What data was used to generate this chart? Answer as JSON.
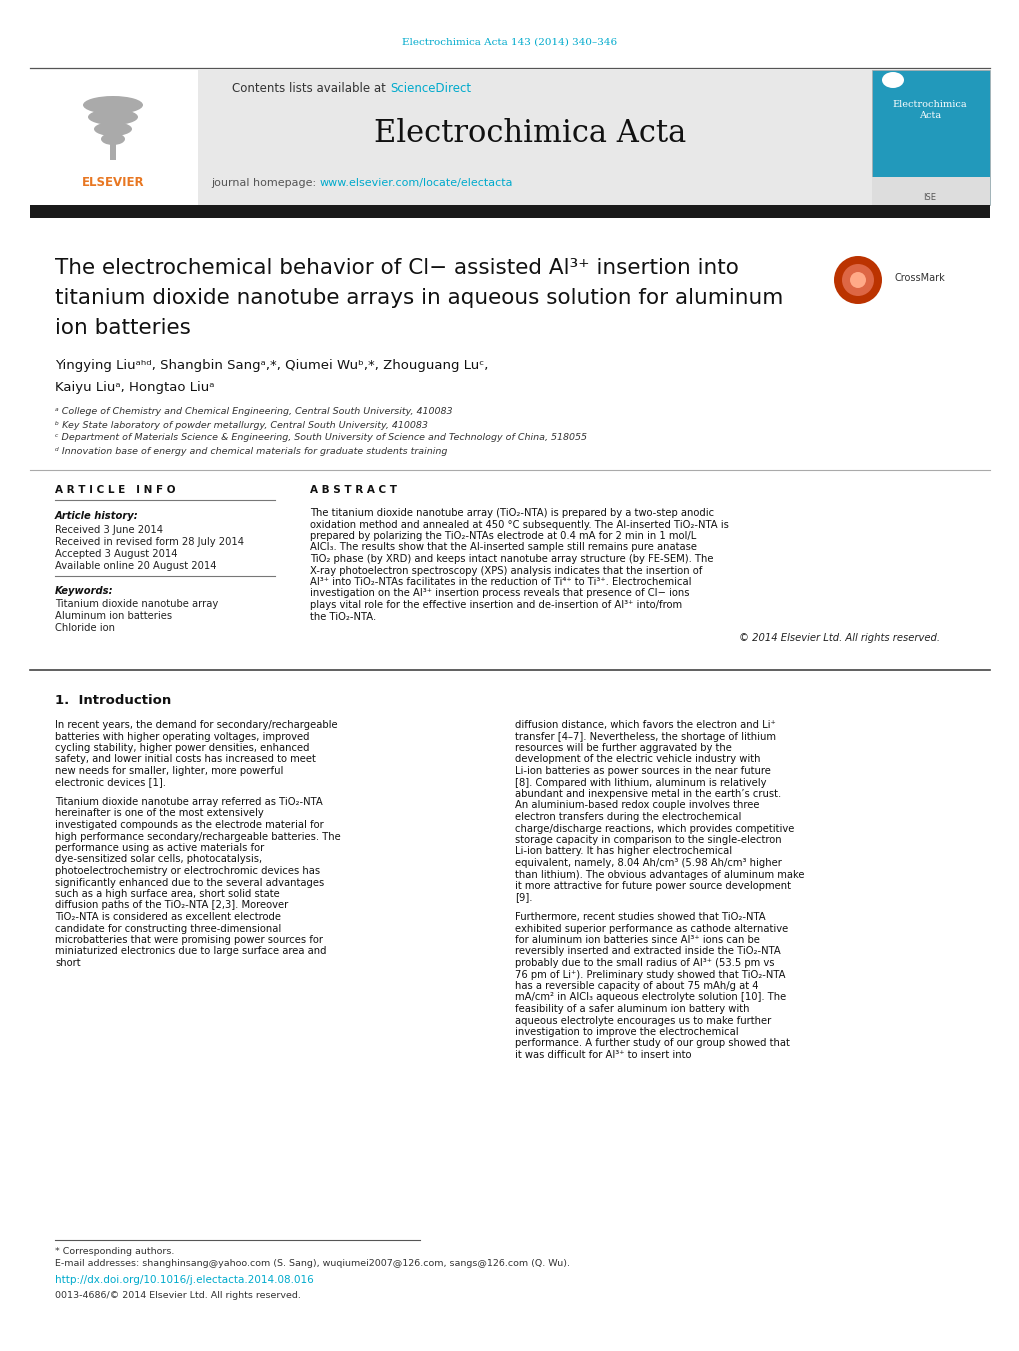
{
  "fig_width": 10.2,
  "fig_height": 13.51,
  "bg_color": "#ffffff",
  "header_citation": "Electrochimica Acta 143 (2014) 340–346",
  "link_color": "#00aacc",
  "journal_name": "Electrochimica Acta",
  "contents_text": "Contents lists available at ",
  "science_direct": "ScienceDirect",
  "journal_homepage_text": "journal homepage: ",
  "journal_url": "www.elsevier.com/locate/electacta",
  "header_bg": "#e8e8e8",
  "dark_bar_color": "#1a1a1a",
  "title_line1": "The electrochemical behavior of Cl− assisted Al³⁺ insertion into",
  "title_line2": "titanium dioxide nanotube arrays in aqueous solution for aluminum",
  "title_line3": "ion batteries",
  "authors_line1": "Yingying Liuᵃʰᵈ, Shangbin Sangᵃ,*, Qiumei Wuᵇ,*, Zhouguang Luᶜ,",
  "authors_line2": "Kaiyu Liuᵃ, Hongtao Liuᵃ",
  "affil_a": "ᵃ College of Chemistry and Chemical Engineering, Central South University, 410083",
  "affil_b": "ᵇ Key State laboratory of powder metallurgy, Central South University, 410083",
  "affil_c": "ᶜ Department of Materials Science & Engineering, South University of Science and Technology of China, 518055",
  "affil_d": "ᵈ Innovation base of energy and chemical materials for graduate students training",
  "article_info_header": "A R T I C L E   I N F O",
  "abstract_header": "A B S T R A C T",
  "article_history_label": "Article history:",
  "received1": "Received 3 June 2014",
  "received2": "Received in revised form 28 July 2014",
  "accepted": "Accepted 3 August 2014",
  "available": "Available online 20 August 2014",
  "keywords_label": "Keywords:",
  "kw1": "Titanium dioxide nanotube array",
  "kw2": "Aluminum ion batteries",
  "kw3": "Chloride ion",
  "abstract_text": "The titanium dioxide nanotube array (TiO₂-NTA) is prepared by a two-step anodic oxidation method and annealed at 450 °C subsequently. The Al-inserted TiO₂-NTA is prepared by polarizing the TiO₂-NTAs electrode at 0.4 mA for 2 min in 1 mol/L AlCl₃. The results show that the Al-inserted sample still remains pure anatase TiO₂ phase (by XRD) and keeps intact nanotube array structure (by FE-SEM). The X-ray photoelectron spectroscopy (XPS) analysis indicates that the insertion of Al³⁺ into TiO₂-NTAs facilitates in the reduction of Ti⁴⁺ to Ti³⁺. Electrochemical investigation on the Al³⁺ insertion process reveals that presence of Cl− ions plays vital role for the effective insertion and de-insertion of Al³⁺ into/from the TiO₂-NTA.",
  "copyright": "© 2014 Elsevier Ltd. All rights reserved.",
  "intro_header": "1.  Introduction",
  "intro_col1_p1": "    In recent years, the demand for secondary/rechargeable batteries with higher operating voltages, improved cycling stability, higher power densities, enhanced safety, and lower initial costs has increased to meet new needs for smaller, lighter, more powerful electronic devices [1].",
  "intro_col1_p2": "    Titanium dioxide nanotube array referred as TiO₂-NTA hereinafter is one of the most extensively investigated compounds as the electrode material for high performance secondary/rechargeable batteries. The performance using as active materials for dye-sensitized solar cells, photocatalysis, photoelectrochemistry or electrochromic devices has significantly enhanced due to the several advantages such as a high surface area, short solid state diffusion paths of the TiO₂-NTA [2,3]. Moreover TiO₂-NTA is considered as excellent electrode candidate for constructing three-dimensional microbatteries that were promising power sources for miniaturized electronics due to large surface area and short",
  "intro_col2_p1": "diffusion distance, which favors the electron and Li⁺ transfer [4–7]. Nevertheless, the shortage of lithium resources will be further aggravated by the development of the electric vehicle industry with Li-ion batteries as power sources in the near future [8]. Compared with lithium, aluminum is relatively abundant and inexpensive metal in the earth’s crust. An aluminium-based redox couple involves three electron transfers during the electrochemical charge/discharge reactions, which provides competitive storage capacity in comparison to the single-electron Li-ion battery. It has higher electrochemical equivalent, namely, 8.04 Ah/cm³ (5.98 Ah/cm³ higher than lithium). The obvious advantages of aluminum make it more attractive for future power source development [9].",
  "intro_col2_p2": "    Furthermore, recent studies showed that TiO₂-NTA exhibited superior performance as cathode alternative for aluminum ion batteries since Al³⁺ ions can be reversibly inserted and extracted inside the TiO₂-NTA probably due to the small radius of Al³⁺ (53.5 pm vs 76 pm of Li⁺). Preliminary study showed that TiO₂-NTA has a reversible capacity of about 75 mAh/g at 4 mA/cm² in AlCl₃ aqueous electrolyte solution [10]. The feasibility of a safer aluminum ion battery with aqueous electrolyte encourages us to make further investigation to improve the electrochemical performance. A further study of our group showed that it was difficult for Al³⁺ to insert into",
  "footer_note": "* Corresponding authors.",
  "footer_email": "E-mail addresses: shanghinsang@yahoo.com (S. Sang), wuqiumei2007@126.com, sangs@126.com (Q. Wu).",
  "footer_doi": "http://dx.doi.org/10.1016/j.electacta.2014.08.016",
  "footer_issn": "0013-4686/© 2014 Elsevier Ltd. All rights reserved.",
  "text_color": "#000000",
  "small_text_color": "#444444"
}
